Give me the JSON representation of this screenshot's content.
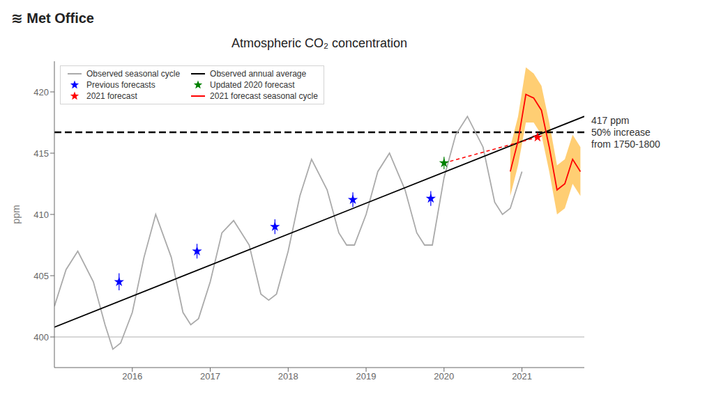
{
  "chart_data": {
    "type": "line",
    "title": "Atmospheric CO₂ concentration",
    "y_label": "ppm",
    "annotations": [
      "≋ Met Office"
    ],
    "xlim": [
      2015.0,
      2021.8
    ],
    "xticks": [
      2016,
      2017,
      2018,
      2019,
      2020,
      2021
    ],
    "ylim": [
      397.5,
      422.5
    ],
    "yticks": [
      400,
      405,
      410,
      415,
      420
    ],
    "grid": false,
    "legend": "upper left",
    "reference_lines": [
      {
        "y": 400,
        "color": "#999999",
        "line_style": "solid"
      },
      {
        "y": 416.7,
        "color": "black",
        "line_style": "dashed",
        "label": "417 ppm\n50% increase\nfrom 1750-1800"
      }
    ],
    "series": [
      {
        "name": "Observed seasonal cycle",
        "type": "line",
        "color": "#aaaaaa",
        "line_style": "solid",
        "x": [
          2015.0,
          2015.15,
          2015.3,
          2015.5,
          2015.65,
          2015.75,
          2015.85,
          2016.0,
          2016.15,
          2016.3,
          2016.5,
          2016.65,
          2016.75,
          2016.85,
          2017.0,
          2017.15,
          2017.3,
          2017.5,
          2017.65,
          2017.75,
          2017.85,
          2018.0,
          2018.15,
          2018.3,
          2018.5,
          2018.65,
          2018.75,
          2018.85,
          2019.0,
          2019.15,
          2019.3,
          2019.5,
          2019.65,
          2019.75,
          2019.85,
          2020.0,
          2020.15,
          2020.3,
          2020.5,
          2020.65,
          2020.75,
          2020.85,
          2021.0
        ],
        "values": [
          402.5,
          405.5,
          407.0,
          404.5,
          401.0,
          399.0,
          399.5,
          402.0,
          406.5,
          410.0,
          406.5,
          402.0,
          401.0,
          401.5,
          404.5,
          408.5,
          409.5,
          407.5,
          403.5,
          403.0,
          403.5,
          407.0,
          411.5,
          414.5,
          412.0,
          408.5,
          407.5,
          407.5,
          410.0,
          413.5,
          415.0,
          412.0,
          408.5,
          407.5,
          407.5,
          413.0,
          416.5,
          418.0,
          415.5,
          411.0,
          410.0,
          410.5,
          413.5
        ]
      },
      {
        "name": "Observed annual average",
        "type": "line",
        "color": "#000000",
        "line_style": "solid",
        "x": [
          2015.0,
          2021.8
        ],
        "values": [
          400.8,
          418.0
        ]
      },
      {
        "name": "Previous forecasts",
        "type": "scatter",
        "marker": "star",
        "color": "blue",
        "x": [
          2015.83,
          2016.83,
          2017.83,
          2018.83,
          2019.83
        ],
        "values": [
          404.5,
          407.0,
          409.0,
          411.2,
          411.3
        ],
        "yerr": [
          0.7,
          0.6,
          0.6,
          0.6,
          0.6
        ]
      },
      {
        "name": "Updated 2020 forecast",
        "type": "scatter",
        "marker": "star",
        "color": "green",
        "x": [
          2020.0
        ],
        "values": [
          414.2
        ],
        "yerr": [
          0.5
        ]
      },
      {
        "type": "band",
        "color": "orange",
        "x": [
          2020.85,
          2020.95,
          2021.05,
          2021.15,
          2021.25,
          2021.35,
          2021.45,
          2021.55,
          2021.65,
          2021.75
        ],
        "lower": [
          411.5,
          414.0,
          417.5,
          417.5,
          416.5,
          413.5,
          410.0,
          410.5,
          412.5,
          411.5
        ],
        "upper": [
          415.5,
          418.0,
          422.0,
          421.5,
          420.5,
          417.5,
          414.0,
          414.5,
          416.5,
          415.5
        ]
      },
      {
        "type": "line",
        "color": "red",
        "line_style": "dashed",
        "x": [
          2020.0,
          2021.2
        ],
        "values": [
          414.2,
          416.3
        ]
      },
      {
        "name": "2021 forecast",
        "type": "scatter",
        "marker": "star",
        "color": "red",
        "x": [
          2021.2
        ],
        "values": [
          416.3
        ]
      },
      {
        "name": "2021 forecast seasonal cycle",
        "type": "line",
        "color": "red",
        "line_style": "solid",
        "x": [
          2020.85,
          2020.95,
          2021.05,
          2021.15,
          2021.25,
          2021.35,
          2021.45,
          2021.55,
          2021.65,
          2021.75
        ],
        "values": [
          413.5,
          416.0,
          419.8,
          419.5,
          418.5,
          415.5,
          412.0,
          412.5,
          414.5,
          413.5
        ]
      }
    ]
  }
}
